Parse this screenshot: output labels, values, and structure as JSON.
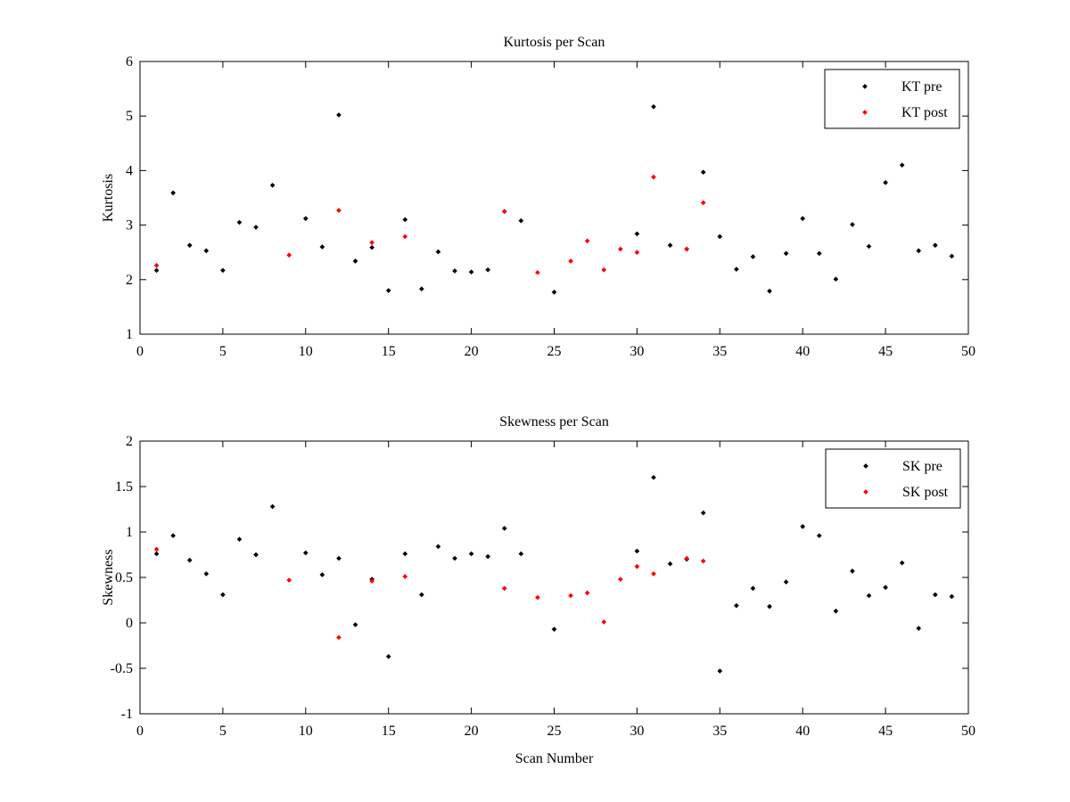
{
  "chart_data": [
    {
      "type": "scatter",
      "title": "Kurtosis per Scan",
      "xlabel": "",
      "ylabel": "Kurtosis",
      "xlim": [
        0,
        50
      ],
      "ylim": [
        1,
        6
      ],
      "xticks": [
        0,
        5,
        10,
        15,
        20,
        25,
        30,
        35,
        40,
        45,
        50
      ],
      "yticks": [
        1,
        2,
        3,
        4,
        5,
        6
      ],
      "legend_position": "top-right",
      "grid": false,
      "series": [
        {
          "name": "KT pre",
          "color": "#000000",
          "points": [
            [
              1,
              2.17
            ],
            [
              2,
              3.59
            ],
            [
              3,
              2.63
            ],
            [
              4,
              2.53
            ],
            [
              5,
              2.17
            ],
            [
              6,
              3.05
            ],
            [
              7,
              2.96
            ],
            [
              8,
              3.73
            ],
            [
              10,
              3.12
            ],
            [
              11,
              2.6
            ],
            [
              12,
              5.02
            ],
            [
              13,
              2.34
            ],
            [
              14,
              2.59
            ],
            [
              15,
              1.8
            ],
            [
              16,
              3.1
            ],
            [
              17,
              1.83
            ],
            [
              18,
              2.51
            ],
            [
              19,
              2.16
            ],
            [
              20,
              2.14
            ],
            [
              21,
              2.18
            ],
            [
              22,
              3.25
            ],
            [
              23,
              3.08
            ],
            [
              25,
              1.77
            ],
            [
              30,
              2.84
            ],
            [
              31,
              5.17
            ],
            [
              32,
              2.63
            ],
            [
              33,
              2.56
            ],
            [
              34,
              3.97
            ],
            [
              35,
              2.79
            ],
            [
              36,
              2.19
            ],
            [
              37,
              2.42
            ],
            [
              38,
              1.79
            ],
            [
              39,
              2.48
            ],
            [
              40,
              3.12
            ],
            [
              41,
              2.48
            ],
            [
              42,
              2.01
            ],
            [
              43,
              3.01
            ],
            [
              44,
              2.61
            ],
            [
              45,
              3.78
            ],
            [
              46,
              4.1
            ],
            [
              47,
              2.53
            ],
            [
              48,
              2.63
            ],
            [
              49,
              2.43
            ]
          ]
        },
        {
          "name": "KT post",
          "color": "#ff0000",
          "points": [
            [
              1,
              2.26
            ],
            [
              9,
              2.45
            ],
            [
              12,
              3.27
            ],
            [
              14,
              2.68
            ],
            [
              16,
              2.79
            ],
            [
              22,
              3.25
            ],
            [
              24,
              2.13
            ],
            [
              26,
              2.34
            ],
            [
              27,
              2.71
            ],
            [
              28,
              2.18
            ],
            [
              29,
              2.56
            ],
            [
              30,
              2.5
            ],
            [
              31,
              3.88
            ],
            [
              33,
              2.56
            ],
            [
              34,
              3.41
            ]
          ]
        }
      ]
    },
    {
      "type": "scatter",
      "title": "Skewness per Scan",
      "xlabel": "Scan Number",
      "ylabel": "Skewness",
      "xlim": [
        0,
        50
      ],
      "ylim": [
        -1,
        2
      ],
      "xticks": [
        0,
        5,
        10,
        15,
        20,
        25,
        30,
        35,
        40,
        45,
        50
      ],
      "yticks": [
        -1,
        -0.5,
        0,
        0.5,
        1,
        1.5,
        2
      ],
      "legend_position": "top-right",
      "grid": false,
      "series": [
        {
          "name": "SK pre",
          "color": "#000000",
          "points": [
            [
              1,
              0.76
            ],
            [
              2,
              0.96
            ],
            [
              3,
              0.69
            ],
            [
              4,
              0.54
            ],
            [
              5,
              0.31
            ],
            [
              6,
              0.92
            ],
            [
              7,
              0.75
            ],
            [
              8,
              1.28
            ],
            [
              10,
              0.77
            ],
            [
              11,
              0.53
            ],
            [
              12,
              0.71
            ],
            [
              13,
              -0.02
            ],
            [
              14,
              0.48
            ],
            [
              15,
              -0.37
            ],
            [
              16,
              0.76
            ],
            [
              17,
              0.31
            ],
            [
              18,
              0.84
            ],
            [
              19,
              0.71
            ],
            [
              20,
              0.76
            ],
            [
              21,
              0.73
            ],
            [
              22,
              1.04
            ],
            [
              23,
              0.76
            ],
            [
              25,
              -0.07
            ],
            [
              30,
              0.79
            ],
            [
              31,
              1.6
            ],
            [
              32,
              0.65
            ],
            [
              33,
              0.7
            ],
            [
              34,
              1.21
            ],
            [
              35,
              -0.53
            ],
            [
              36,
              0.19
            ],
            [
              37,
              0.38
            ],
            [
              38,
              0.18
            ],
            [
              39,
              0.45
            ],
            [
              40,
              1.06
            ],
            [
              41,
              0.96
            ],
            [
              42,
              0.13
            ],
            [
              43,
              0.57
            ],
            [
              44,
              0.3
            ],
            [
              45,
              0.39
            ],
            [
              46,
              0.66
            ],
            [
              47,
              -0.06
            ],
            [
              48,
              0.31
            ],
            [
              49,
              0.29
            ]
          ]
        },
        {
          "name": "SK post",
          "color": "#ff0000",
          "points": [
            [
              1,
              0.81
            ],
            [
              9,
              0.47
            ],
            [
              12,
              -0.16
            ],
            [
              14,
              0.46
            ],
            [
              16,
              0.51
            ],
            [
              22,
              0.38
            ],
            [
              24,
              0.28
            ],
            [
              26,
              0.3
            ],
            [
              27,
              0.33
            ],
            [
              28,
              0.01
            ],
            [
              29,
              0.48
            ],
            [
              30,
              0.62
            ],
            [
              31,
              0.54
            ],
            [
              33,
              0.71
            ],
            [
              34,
              0.68
            ]
          ]
        }
      ]
    }
  ]
}
